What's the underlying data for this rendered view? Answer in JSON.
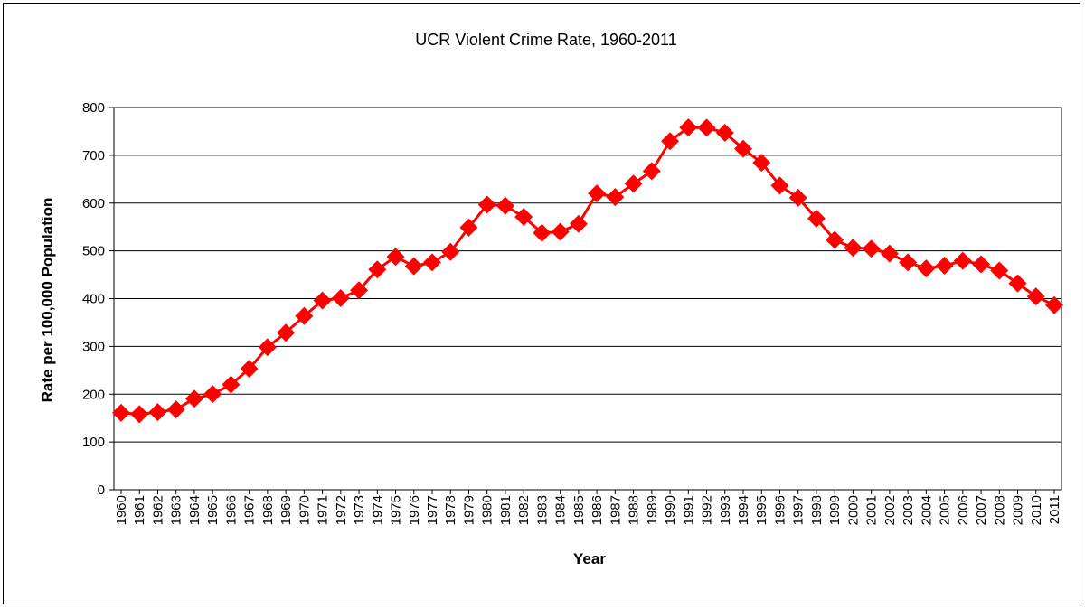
{
  "chart_data": {
    "type": "line",
    "title": "UCR  Violent Crime Rate, 1960-2011",
    "xlabel": "Year",
    "ylabel": "Rate per 100,000 Population",
    "ylim": [
      0,
      800
    ],
    "yticks": [
      0,
      100,
      200,
      300,
      400,
      500,
      600,
      700,
      800
    ],
    "grid": true,
    "legend": "none",
    "categories": [
      "1960",
      "1961",
      "1962",
      "1963",
      "1964",
      "1965",
      "1966",
      "1967",
      "1968",
      "1969",
      "1970",
      "1971",
      "1972",
      "1973",
      "1974",
      "1975",
      "1976",
      "1977",
      "1978",
      "1979",
      "1980",
      "1981",
      "1982",
      "1983",
      "1984",
      "1985",
      "1986",
      "1987",
      "1988",
      "1989",
      "1990",
      "1991",
      "1992",
      "1993",
      "1994",
      "1995",
      "1996",
      "1997",
      "1998",
      "1999",
      "2000",
      "2001",
      "2002",
      "2003",
      "2004",
      "2005",
      "2006",
      "2007",
      "2008",
      "2009",
      "2010",
      "2011"
    ],
    "series": [
      {
        "color": "#ff0000",
        "marker": "diamond",
        "values": [
          160.9,
          158.1,
          162.3,
          168.2,
          190.6,
          200.2,
          220.0,
          253.2,
          298.4,
          328.7,
          363.5,
          396.0,
          401.0,
          417.4,
          461.1,
          487.8,
          467.8,
          475.9,
          497.8,
          548.9,
          596.6,
          594.3,
          571.1,
          537.7,
          539.9,
          556.6,
          620.1,
          612.5,
          640.6,
          666.9,
          729.6,
          758.2,
          757.7,
          747.1,
          713.6,
          684.5,
          636.6,
          611.0,
          567.6,
          523.0,
          506.5,
          504.5,
          494.4,
          475.8,
          463.2,
          469.0,
          479.3,
          471.8,
          458.6,
          431.9,
          404.5,
          386.3
        ]
      }
    ]
  }
}
